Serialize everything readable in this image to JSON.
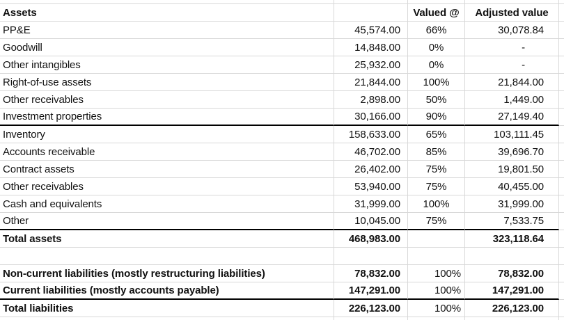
{
  "colors": {
    "background": "#ffffff",
    "gridline": "#d8d8d8",
    "section_border": "#000000",
    "text": "#111111"
  },
  "table": {
    "header": {
      "assets": "Assets",
      "valued_at": "Valued @",
      "adjusted_value": "Adjusted value"
    },
    "rows": [
      {
        "label": "PP&E",
        "value": "45,574.00",
        "pct": "66%",
        "adj": "30,078.84"
      },
      {
        "label": "Goodwill",
        "value": "14,848.00",
        "pct": "0%",
        "adj": "-"
      },
      {
        "label": "Other intangibles",
        "value": "25,932.00",
        "pct": "0%",
        "adj": "-"
      },
      {
        "label": "Right-of-use assets",
        "value": "21,844.00",
        "pct": "100%",
        "adj": "21,844.00"
      },
      {
        "label": "Other receivables",
        "value": "2,898.00",
        "pct": "50%",
        "adj": "1,449.00"
      },
      {
        "label": "Investment properties",
        "value": "30,166.00",
        "pct": "90%",
        "adj": "27,149.40"
      },
      {
        "label": "Inventory",
        "value": "158,633.00",
        "pct": "65%",
        "adj": "103,111.45"
      },
      {
        "label": "Accounts receivable",
        "value": "46,702.00",
        "pct": "85%",
        "adj": "39,696.70"
      },
      {
        "label": "Contract assets",
        "value": "26,402.00",
        "pct": "75%",
        "adj": "19,801.50"
      },
      {
        "label": "Other receivables",
        "value": "53,940.00",
        "pct": "75%",
        "adj": "40,455.00"
      },
      {
        "label": "Cash and equivalents",
        "value": "31,999.00",
        "pct": "100%",
        "adj": "31,999.00"
      },
      {
        "label": "Other",
        "value": "10,045.00",
        "pct": "75%",
        "adj": "7,533.75"
      },
      {
        "label": "Total assets",
        "value": "468,983.00",
        "pct": "",
        "adj": "323,118.64"
      },
      {
        "label": "",
        "value": "",
        "pct": "",
        "adj": ""
      },
      {
        "label": "Non-current liabilities (mostly restructuring liabilities)",
        "value": "78,832.00",
        "pct": "100%",
        "adj": "78,832.00"
      },
      {
        "label": "Current liabilities (mostly accounts payable)",
        "value": "147,291.00",
        "pct": "100%",
        "adj": "147,291.00"
      },
      {
        "label": "Total liabilities",
        "value": "226,123.00",
        "pct": "100%",
        "adj": "226,123.00"
      }
    ]
  }
}
